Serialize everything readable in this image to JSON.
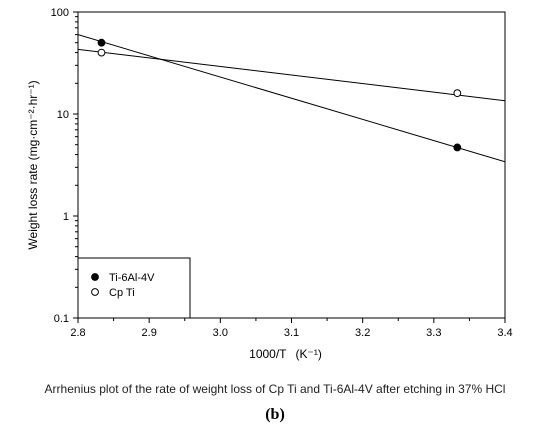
{
  "chart_data": {
    "type": "scatter",
    "xlabel": "1000/T",
    "xlabel_unit": "(K⁻¹)",
    "ylabel": "Weight loss rate (mg·cm⁻²·hr⁻¹)",
    "xlim": [
      2.8,
      3.4
    ],
    "ylim": [
      0.1,
      100
    ],
    "yscale": "log",
    "x_ticks": [
      "2.8",
      "2.9",
      "3.0",
      "3.1",
      "3.2",
      "3.3",
      "3.4"
    ],
    "y_ticks": [
      "0.1",
      "1",
      "10",
      "100"
    ],
    "grid": false,
    "legend_position": "bottom-left",
    "series": [
      {
        "name": "Ti-6Al-4V",
        "marker": "filled-circle",
        "color": "#000000",
        "x": [
          2.833,
          3.333
        ],
        "y": [
          50,
          4.7
        ],
        "fit_line": {
          "x": [
            2.8,
            3.4
          ],
          "y": [
            60,
            3.4
          ]
        }
      },
      {
        "name": "Cp Ti",
        "marker": "open-circle",
        "color": "#000000",
        "x": [
          2.833,
          3.333
        ],
        "y": [
          40,
          16
        ],
        "fit_line": {
          "x": [
            2.8,
            3.4
          ],
          "y": [
            43,
            13.5
          ]
        }
      }
    ]
  },
  "caption": "Arrhenius plot of the rate of weight loss of  Cp Ti and Ti-6Al-4V after etching in 37% HCl",
  "panel_label": "(b)"
}
